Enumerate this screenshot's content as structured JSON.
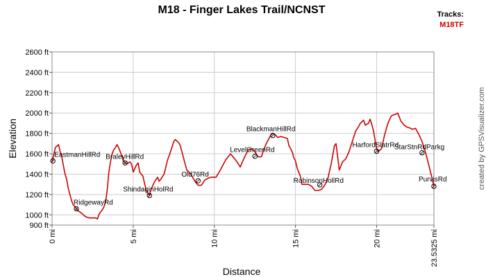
{
  "chart_data": {
    "type": "line",
    "title": "M18 - Finger Lakes Trail/NCNST",
    "xlabel": "Distance",
    "ylabel": "Elevation",
    "credit": "created by GPSVisualizer.com",
    "legend": {
      "heading": "Tracks:",
      "placement": "top-right"
    },
    "xlim": [
      0,
      23.5325
    ],
    "ylim": [
      900,
      2600
    ],
    "grid": true,
    "x_ticks": [
      {
        "value": 0,
        "label": "0 mi"
      },
      {
        "value": 5,
        "label": "5 mi"
      },
      {
        "value": 10,
        "label": "10 mi"
      },
      {
        "value": 15,
        "label": "15 mi"
      },
      {
        "value": 20,
        "label": "20 mi"
      },
      {
        "value": 23.5325,
        "label": "23.5325 mi"
      }
    ],
    "y_ticks": [
      {
        "value": 900,
        "label": "900 ft"
      },
      {
        "value": 1000,
        "label": "1000 ft"
      },
      {
        "value": 1200,
        "label": "1200 ft"
      },
      {
        "value": 1400,
        "label": "1400 ft"
      },
      {
        "value": 1600,
        "label": "1600 ft"
      },
      {
        "value": 1800,
        "label": "1800 ft"
      },
      {
        "value": 2000,
        "label": "2000 ft"
      },
      {
        "value": 2200,
        "label": "2200 ft"
      },
      {
        "value": 2400,
        "label": "2400 ft"
      },
      {
        "value": 2600,
        "label": "2600 ft"
      }
    ],
    "series": [
      {
        "name": "M18TF",
        "color": "#cc0000",
        "x": [
          0,
          0.2,
          0.4,
          0.5,
          0.6,
          0.7,
          0.8,
          0.9,
          1.0,
          1.1,
          1.2,
          1.3,
          1.5,
          1.6,
          1.8,
          2.0,
          2.1,
          2.3,
          2.5,
          2.7,
          2.8,
          2.9,
          3.1,
          3.2,
          3.3,
          3.4,
          3.5,
          3.6,
          3.7,
          3.8,
          3.9,
          4.0,
          4.1,
          4.2,
          4.3,
          4.4,
          4.5,
          4.6,
          4.7,
          4.8,
          4.9,
          5.0,
          5.2,
          5.3,
          5.4,
          5.5,
          5.6,
          5.7,
          5.8,
          6.0,
          6.1,
          6.3,
          6.5,
          6.6,
          6.7,
          6.9,
          7.0,
          7.1,
          7.3,
          7.4,
          7.5,
          7.6,
          7.8,
          7.9,
          8.0,
          8.1,
          8.3,
          8.5,
          8.7,
          8.8,
          9.0,
          9.2,
          9.4,
          9.6,
          9.8,
          10.0,
          10.1,
          10.3,
          10.5,
          10.7,
          10.9,
          11.0,
          11.2,
          11.4,
          11.6,
          11.7,
          11.9,
          12.1,
          12.3,
          12.5,
          12.7,
          12.9,
          13.0,
          13.2,
          13.4,
          13.5,
          13.6,
          13.8,
          13.9,
          14.1,
          14.3,
          14.5,
          14.6,
          14.8,
          14.9,
          15.0,
          15.1,
          15.3,
          15.4,
          15.6,
          15.8,
          16.0,
          16.2,
          16.4,
          16.6,
          16.8,
          17.0,
          17.2,
          17.4,
          17.5,
          17.7,
          17.9,
          18.1,
          18.3,
          18.5,
          18.7,
          18.9,
          19.0,
          19.2,
          19.3,
          19.5,
          19.6,
          19.7,
          19.8,
          20.0,
          20.1,
          20.3,
          20.4,
          20.5,
          20.7,
          20.9,
          21.0,
          21.2,
          21.3,
          21.5,
          21.7,
          21.9,
          22.1,
          22.2,
          22.4,
          22.5,
          22.6,
          22.8,
          23.0,
          23.2,
          23.4,
          23.5325
        ],
        "y": [
          1520,
          1660,
          1690,
          1620,
          1570,
          1480,
          1400,
          1350,
          1260,
          1200,
          1140,
          1100,
          1060,
          1040,
          1020,
          990,
          980,
          970,
          970,
          970,
          960,
          1010,
          1050,
          1080,
          1130,
          1250,
          1420,
          1520,
          1600,
          1640,
          1660,
          1690,
          1660,
          1620,
          1580,
          1530,
          1510,
          1500,
          1510,
          1520,
          1500,
          1420,
          1490,
          1510,
          1420,
          1400,
          1380,
          1310,
          1240,
          1190,
          1250,
          1320,
          1370,
          1330,
          1350,
          1400,
          1460,
          1530,
          1620,
          1670,
          1720,
          1740,
          1710,
          1680,
          1620,
          1560,
          1440,
          1410,
          1360,
          1330,
          1290,
          1290,
          1340,
          1360,
          1370,
          1370,
          1370,
          1420,
          1480,
          1540,
          1580,
          1600,
          1560,
          1520,
          1470,
          1510,
          1580,
          1640,
          1650,
          1620,
          1570,
          1570,
          1620,
          1700,
          1760,
          1790,
          1800,
          1780,
          1760,
          1770,
          1760,
          1750,
          1680,
          1620,
          1560,
          1530,
          1460,
          1380,
          1300,
          1300,
          1300,
          1280,
          1240,
          1240,
          1250,
          1290,
          1360,
          1500,
          1680,
          1700,
          1440,
          1520,
          1550,
          1620,
          1720,
          1820,
          1870,
          1900,
          1930,
          1880,
          1900,
          1940,
          1890,
          1830,
          1650,
          1620,
          1650,
          1720,
          1790,
          1900,
          1970,
          1980,
          1990,
          2000,
          1920,
          1880,
          1860,
          1850,
          1840,
          1850,
          1820,
          1790,
          1720,
          1620,
          1500,
          1370,
          1280
        ]
      }
    ],
    "waypoints": [
      {
        "label": "EastmanHillRd",
        "x": 0.05,
        "y": 1530
      },
      {
        "label": "RidgewayRd",
        "x": 1.5,
        "y": 1060
      },
      {
        "label": "BraleyHillRd",
        "x": 4.5,
        "y": 1510
      },
      {
        "label": "ShindaginHolRd",
        "x": 6.0,
        "y": 1190
      },
      {
        "label": "Old76Rd",
        "x": 9.0,
        "y": 1335
      },
      {
        "label": "LevelGreenRd",
        "x": 12.5,
        "y": 1575
      },
      {
        "label": "BlackmanHillRd",
        "x": 13.6,
        "y": 1780
      },
      {
        "label": "RobinsonHollRd",
        "x": 16.5,
        "y": 1295
      },
      {
        "label": "HarfordSlatrRd",
        "x": 20.0,
        "y": 1625
      },
      {
        "label": "StarStnRdParkg",
        "x": 22.8,
        "y": 1610
      },
      {
        "label": "PurvisRd",
        "x": 23.53,
        "y": 1280
      }
    ]
  }
}
